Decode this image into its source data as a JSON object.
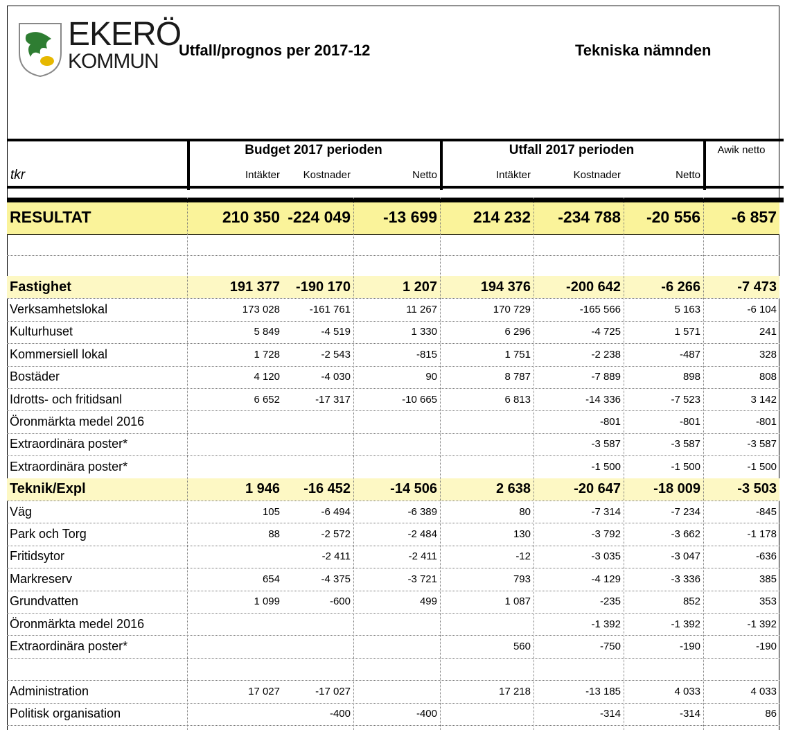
{
  "header": {
    "logo": {
      "name": "EKERÖ",
      "sub": "KOMMUN"
    },
    "title": "Utfall/prognos per 2017-12",
    "subtitle": "Tekniska nämnden"
  },
  "table": {
    "unit": "tkr",
    "groups": [
      "Budget 2017 perioden",
      "Utfall 2017 perioden",
      "Awik netto"
    ],
    "columns": [
      "Intäkter",
      "Kostnader",
      "Netto",
      "Intäkter",
      "Kostnader",
      "Netto"
    ],
    "rows": [
      [
        "RESULTAT",
        "210 350",
        "-224 049",
        "-13 699",
        "214 232",
        "-234 788",
        "-20 556",
        "-6 857"
      ],
      [
        null,
        null,
        null,
        null,
        null,
        null,
        null,
        null
      ],
      [
        null,
        null,
        null,
        null,
        null,
        null,
        null,
        null
      ],
      [
        "Fastighet",
        "191 377",
        "-190 170",
        "1 207",
        "194 376",
        "-200 642",
        "-6 266",
        "-7 473"
      ],
      [
        "Verksamhetslokal",
        "173 028",
        "-161 761",
        "11 267",
        "170 729",
        "-165 566",
        "5 163",
        "-6 104"
      ],
      [
        "Kulturhuset",
        "5 849",
        "-4 519",
        "1 330",
        "6 296",
        "-4 725",
        "1 571",
        "241"
      ],
      [
        "Kommersiell lokal",
        "1 728",
        "-2 543",
        "-815",
        "1 751",
        "-2 238",
        "-487",
        "328"
      ],
      [
        "Bostäder",
        "4 120",
        "-4 030",
        "90",
        "8 787",
        "-7 889",
        "898",
        "808"
      ],
      [
        "Idrotts- och fritidsanl",
        "6 652",
        "-17 317",
        "-10 665",
        "6 813",
        "-14 336",
        "-7 523",
        "3 142"
      ],
      [
        "Öronmärkta medel 2016",
        null,
        null,
        null,
        null,
        "-801",
        "-801",
        "-801"
      ],
      [
        "Extraordinära poster*",
        null,
        null,
        null,
        null,
        "-3 587",
        "-3 587",
        "-3 587"
      ],
      [
        "Extraordinära poster*",
        null,
        null,
        null,
        null,
        "-1 500",
        "-1 500",
        "-1 500"
      ],
      [
        "Teknik/Expl",
        "1 946",
        "-16 452",
        "-14 506",
        "2 638",
        "-20 647",
        "-18 009",
        "-3 503"
      ],
      [
        "Väg",
        "105",
        "-6 494",
        "-6 389",
        "80",
        "-7 314",
        "-7 234",
        "-845"
      ],
      [
        "Park och Torg",
        "88",
        "-2 572",
        "-2 484",
        "130",
        "-3 792",
        "-3 662",
        "-1 178"
      ],
      [
        "Fritidsytor",
        null,
        "-2 411",
        "-2 411",
        "-12",
        "-3 035",
        "-3 047",
        "-636"
      ],
      [
        "Markreserv",
        "654",
        "-4 375",
        "-3 721",
        "793",
        "-4 129",
        "-3 336",
        "385"
      ],
      [
        "Grundvatten",
        "1 099",
        "-600",
        "499",
        "1 087",
        "-235",
        "852",
        "353"
      ],
      [
        "Öronmärkta medel 2016",
        null,
        null,
        null,
        null,
        "-1 392",
        "-1 392",
        "-1 392"
      ],
      [
        "Extraordinära poster*",
        null,
        null,
        null,
        "560",
        "-750",
        "-190",
        "-190"
      ],
      [
        null,
        null,
        null,
        null,
        null,
        null,
        null,
        null
      ],
      [
        "Administration",
        "17 027",
        "-17 027",
        null,
        "17 218",
        "-13 185",
        "4 033",
        "4 033"
      ],
      [
        "Politisk organisation",
        null,
        "-400",
        "-400",
        null,
        "-314",
        "-314",
        "86"
      ]
    ]
  }
}
